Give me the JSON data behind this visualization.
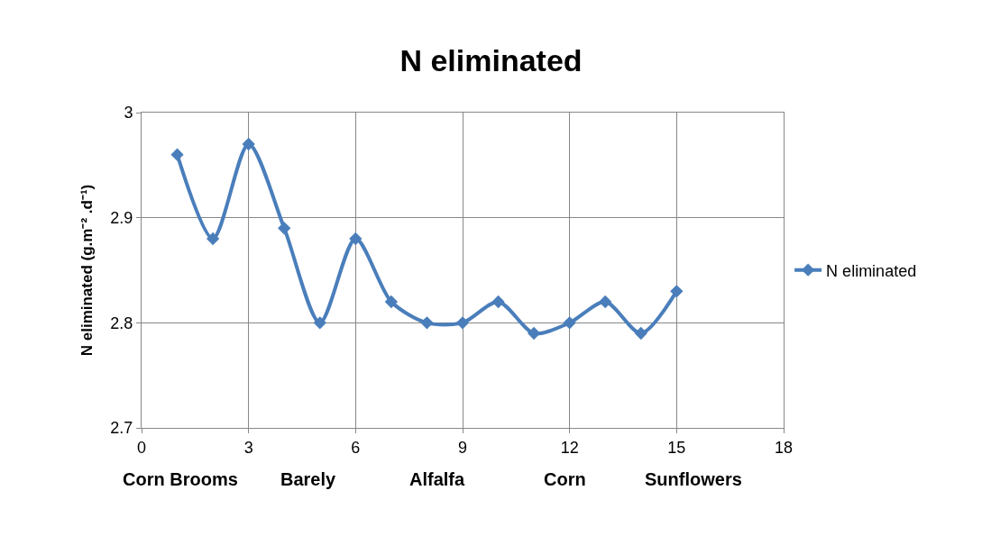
{
  "chart_data": {
    "type": "line",
    "title": "N eliminated",
    "ylabel": "N eliminated (g.m⁻² .d⁻¹)",
    "annotations": [
      "Corn Brooms",
      "Barely",
      "Alfalfa",
      "Corn",
      "Sunflowers"
    ],
    "x": [
      1,
      2,
      3,
      4,
      5,
      6,
      7,
      8,
      9,
      10,
      11,
      12,
      13,
      14,
      15
    ],
    "series": [
      {
        "name": "N eliminated",
        "color": "#4a7ebb",
        "values": [
          2.96,
          2.88,
          2.97,
          2.89,
          2.8,
          2.88,
          2.82,
          2.8,
          2.8,
          2.82,
          2.79,
          2.8,
          2.82,
          2.79,
          2.83
        ]
      }
    ],
    "xlim": [
      0,
      18
    ],
    "xticks": [
      0,
      3,
      6,
      9,
      12,
      15,
      18
    ],
    "ylim": [
      2.7,
      3.0
    ],
    "yticks": [
      2.7,
      2.8,
      2.9,
      3
    ],
    "grid": true,
    "legend": "right",
    "marker": "diamond",
    "line_style": "solid"
  }
}
